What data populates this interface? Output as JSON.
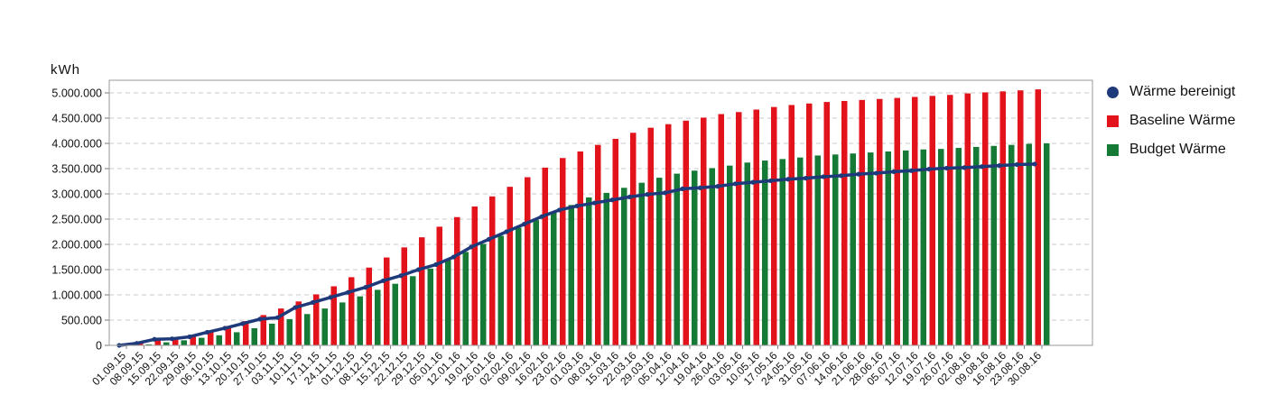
{
  "chart_data": {
    "type": "bar",
    "ylabel": "kWh",
    "ylim": [
      0,
      5250000
    ],
    "yticks": [
      0,
      500000,
      1000000,
      1500000,
      2000000,
      2500000,
      3000000,
      3500000,
      4000000,
      4500000,
      5000000
    ],
    "ytick_labels": [
      "0",
      "500.000",
      "1.000.000",
      "1.500.000",
      "2.000.000",
      "2.500.000",
      "3.000.000",
      "3.500.000",
      "4.000.000",
      "4.500.000",
      "5.000.000"
    ],
    "grid": true,
    "legend_position": "right",
    "categories": [
      "01.09.15",
      "08.09.15",
      "15.09.15",
      "22.09.15",
      "29.09.15",
      "06.10.15",
      "13.10.15",
      "20.10.15",
      "27.10.15",
      "03.11.15",
      "10.11.15",
      "17.11.15",
      "24.11.15",
      "01.12.15",
      "08.12.15",
      "15.12.15",
      "22.12.15",
      "29.12.15",
      "05.01.16",
      "12.01.16",
      "19.01.16",
      "26.01.16",
      "02.02.16",
      "09.02.16",
      "16.02.16",
      "23.02.16",
      "01.03.16",
      "08.03.16",
      "15.03.16",
      "22.03.16",
      "29.03.16",
      "05.04.16",
      "12.04.16",
      "19.04.16",
      "26.04.16",
      "03.05.16",
      "10.05.16",
      "17.05.16",
      "24.05.16",
      "31.05.16",
      "07.06.16",
      "14.06.16",
      "21.06.16",
      "28.06.16",
      "05.07.16",
      "12.07.16",
      "19.07.16",
      "26.07.16",
      "02.08.16",
      "09.08.16",
      "16.08.16",
      "23.08.16",
      "30.08.16"
    ],
    "series": [
      {
        "name": "Wärme bereinigt",
        "kind": "line",
        "color": "#1f3a7a",
        "values": [
          0,
          40000,
          120000,
          130000,
          170000,
          260000,
          340000,
          430000,
          520000,
          550000,
          750000,
          850000,
          950000,
          1050000,
          1150000,
          1280000,
          1380000,
          1500000,
          1600000,
          1750000,
          1950000,
          2100000,
          2250000,
          2400000,
          2550000,
          2680000,
          2760000,
          2820000,
          2880000,
          2940000,
          2990000,
          3020000,
          3100000,
          3120000,
          3150000,
          3200000,
          3230000,
          3260000,
          3290000,
          3310000,
          3340000,
          3360000,
          3390000,
          3410000,
          3440000,
          3460000,
          3490000,
          3510000,
          3520000,
          3540000,
          3560000,
          3580000,
          3590000
        ]
      },
      {
        "name": "Baseline Wärme",
        "kind": "bar",
        "color": "#e3131c",
        "values": [
          10000,
          50000,
          100000,
          150000,
          200000,
          270000,
          380000,
          480000,
          600000,
          730000,
          870000,
          1010000,
          1170000,
          1350000,
          1540000,
          1740000,
          1940000,
          2140000,
          2350000,
          2540000,
          2750000,
          2950000,
          3140000,
          3330000,
          3520000,
          3710000,
          3840000,
          3970000,
          4090000,
          4210000,
          4310000,
          4380000,
          4450000,
          4510000,
          4580000,
          4620000,
          4670000,
          4720000,
          4760000,
          4790000,
          4820000,
          4840000,
          4860000,
          4880000,
          4900000,
          4920000,
          4940000,
          4960000,
          4990000,
          5010000,
          5030000,
          5050000,
          5070000
        ]
      },
      {
        "name": "Budget Wärme",
        "kind": "bar",
        "color": "#157a35",
        "values": [
          10000,
          20000,
          60000,
          100000,
          150000,
          200000,
          260000,
          340000,
          430000,
          520000,
          620000,
          730000,
          850000,
          970000,
          1100000,
          1220000,
          1370000,
          1520000,
          1690000,
          1850000,
          2010000,
          2170000,
          2330000,
          2480000,
          2630000,
          2780000,
          2930000,
          3020000,
          3120000,
          3220000,
          3320000,
          3400000,
          3460000,
          3510000,
          3560000,
          3620000,
          3660000,
          3690000,
          3720000,
          3760000,
          3780000,
          3800000,
          3820000,
          3840000,
          3860000,
          3880000,
          3890000,
          3910000,
          3930000,
          3950000,
          3970000,
          3990000,
          4000000
        ]
      }
    ]
  }
}
